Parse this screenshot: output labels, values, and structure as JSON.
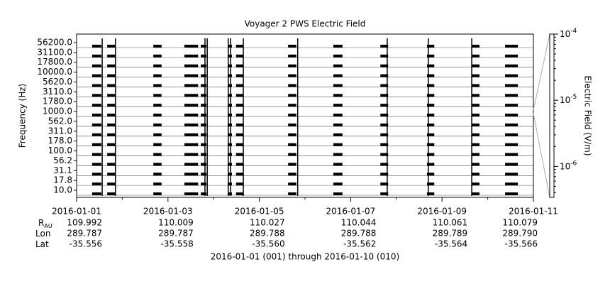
{
  "chart_data": {
    "type": "spectrogram",
    "title": "Voyager 2 PWS Electric Field",
    "y_label": "Frequency (Hz)",
    "y2_label": "Electric Field (V/m)",
    "x_label": "2016-01-01 (001) through 2016-01-10 (010)",
    "categories": [
      "56200.0",
      "31100.0",
      "17800.0",
      "10000.0",
      "5620.0",
      "3110.0",
      "1780.0",
      "1000.0",
      "562.0",
      "311.0",
      "178.0",
      "100.0",
      "56.2",
      "31.1",
      "17.8",
      "10.0"
    ],
    "xlim": [
      0,
      10
    ],
    "xticks": [
      {
        "value": 0,
        "label": "2016-01-01"
      },
      {
        "value": 2,
        "label": "2016-01-03"
      },
      {
        "value": 4,
        "label": "2016-01-05"
      },
      {
        "value": 6,
        "label": "2016-01-07"
      },
      {
        "value": 8,
        "label": "2016-01-09"
      },
      {
        "value": 10,
        "label": "2016-01-11"
      }
    ],
    "bursts": [
      {
        "start": 0.34,
        "end": 0.54
      },
      {
        "start": 0.67,
        "end": 0.85
      },
      {
        "start": 1.68,
        "end": 1.86
      },
      {
        "start": 2.36,
        "end": 2.66
      },
      {
        "start": 2.72,
        "end": 2.84
      },
      {
        "start": 3.31,
        "end": 3.4
      },
      {
        "start": 3.49,
        "end": 3.65
      },
      {
        "start": 4.63,
        "end": 4.81
      },
      {
        "start": 5.62,
        "end": 5.82
      },
      {
        "start": 6.65,
        "end": 6.82
      },
      {
        "start": 7.67,
        "end": 7.83
      },
      {
        "start": 8.65,
        "end": 8.82
      },
      {
        "start": 9.38,
        "end": 9.66
      }
    ],
    "spikes": [
      0.56,
      0.85,
      2.81,
      2.86,
      3.32,
      3.37,
      3.65,
      4.84,
      6.8,
      7.7,
      8.65
    ],
    "y2_log": true,
    "y2lim": [
      3.4e-07,
      0.0001
    ],
    "y2ticks": [
      {
        "value": 0.0001,
        "label": "10",
        "exponent": "-4"
      },
      {
        "value": 1e-05,
        "label": "10",
        "exponent": "-5"
      },
      {
        "value": 1e-06,
        "label": "10",
        "exponent": "-6"
      }
    ],
    "color": "#000000",
    "ephemeris": [
      {
        "label": "R",
        "subscript": "AU",
        "values": [
          "109.992",
          "110.009",
          "110.027",
          "110.044",
          "110.061",
          "110.079"
        ]
      },
      {
        "label": "Lon",
        "values": [
          "289.787",
          "289.787",
          "289.788",
          "289.788",
          "289.789",
          "289.790"
        ]
      },
      {
        "label": "Lat",
        "values": [
          "-35.556",
          "-35.558",
          "-35.560",
          "-35.562",
          "-35.564",
          "-35.566"
        ]
      }
    ]
  }
}
